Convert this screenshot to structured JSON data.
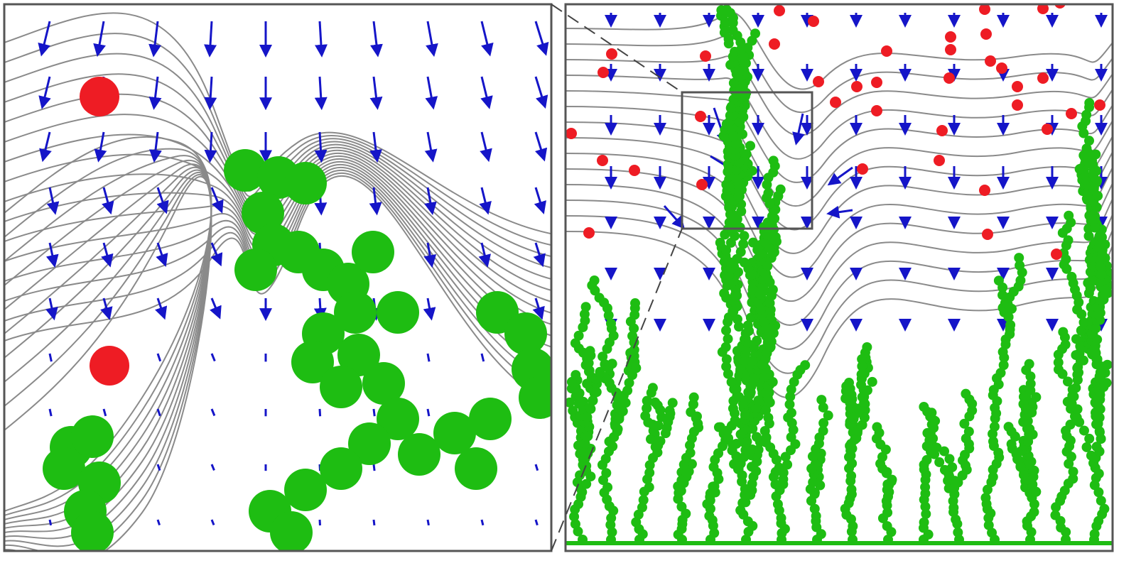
{
  "figure": {
    "panels": [
      {
        "id": "zoomed-view",
        "description_key": "left"
      },
      {
        "id": "full-view",
        "description_key": "right"
      }
    ],
    "colors": {
      "contour": "#8a8a8a",
      "vector": "#1515c8",
      "particle": "#ee1c24",
      "aggregate": "#1ebd12",
      "frame": "#555555",
      "leader": "#444444"
    },
    "legend": []
  }
}
